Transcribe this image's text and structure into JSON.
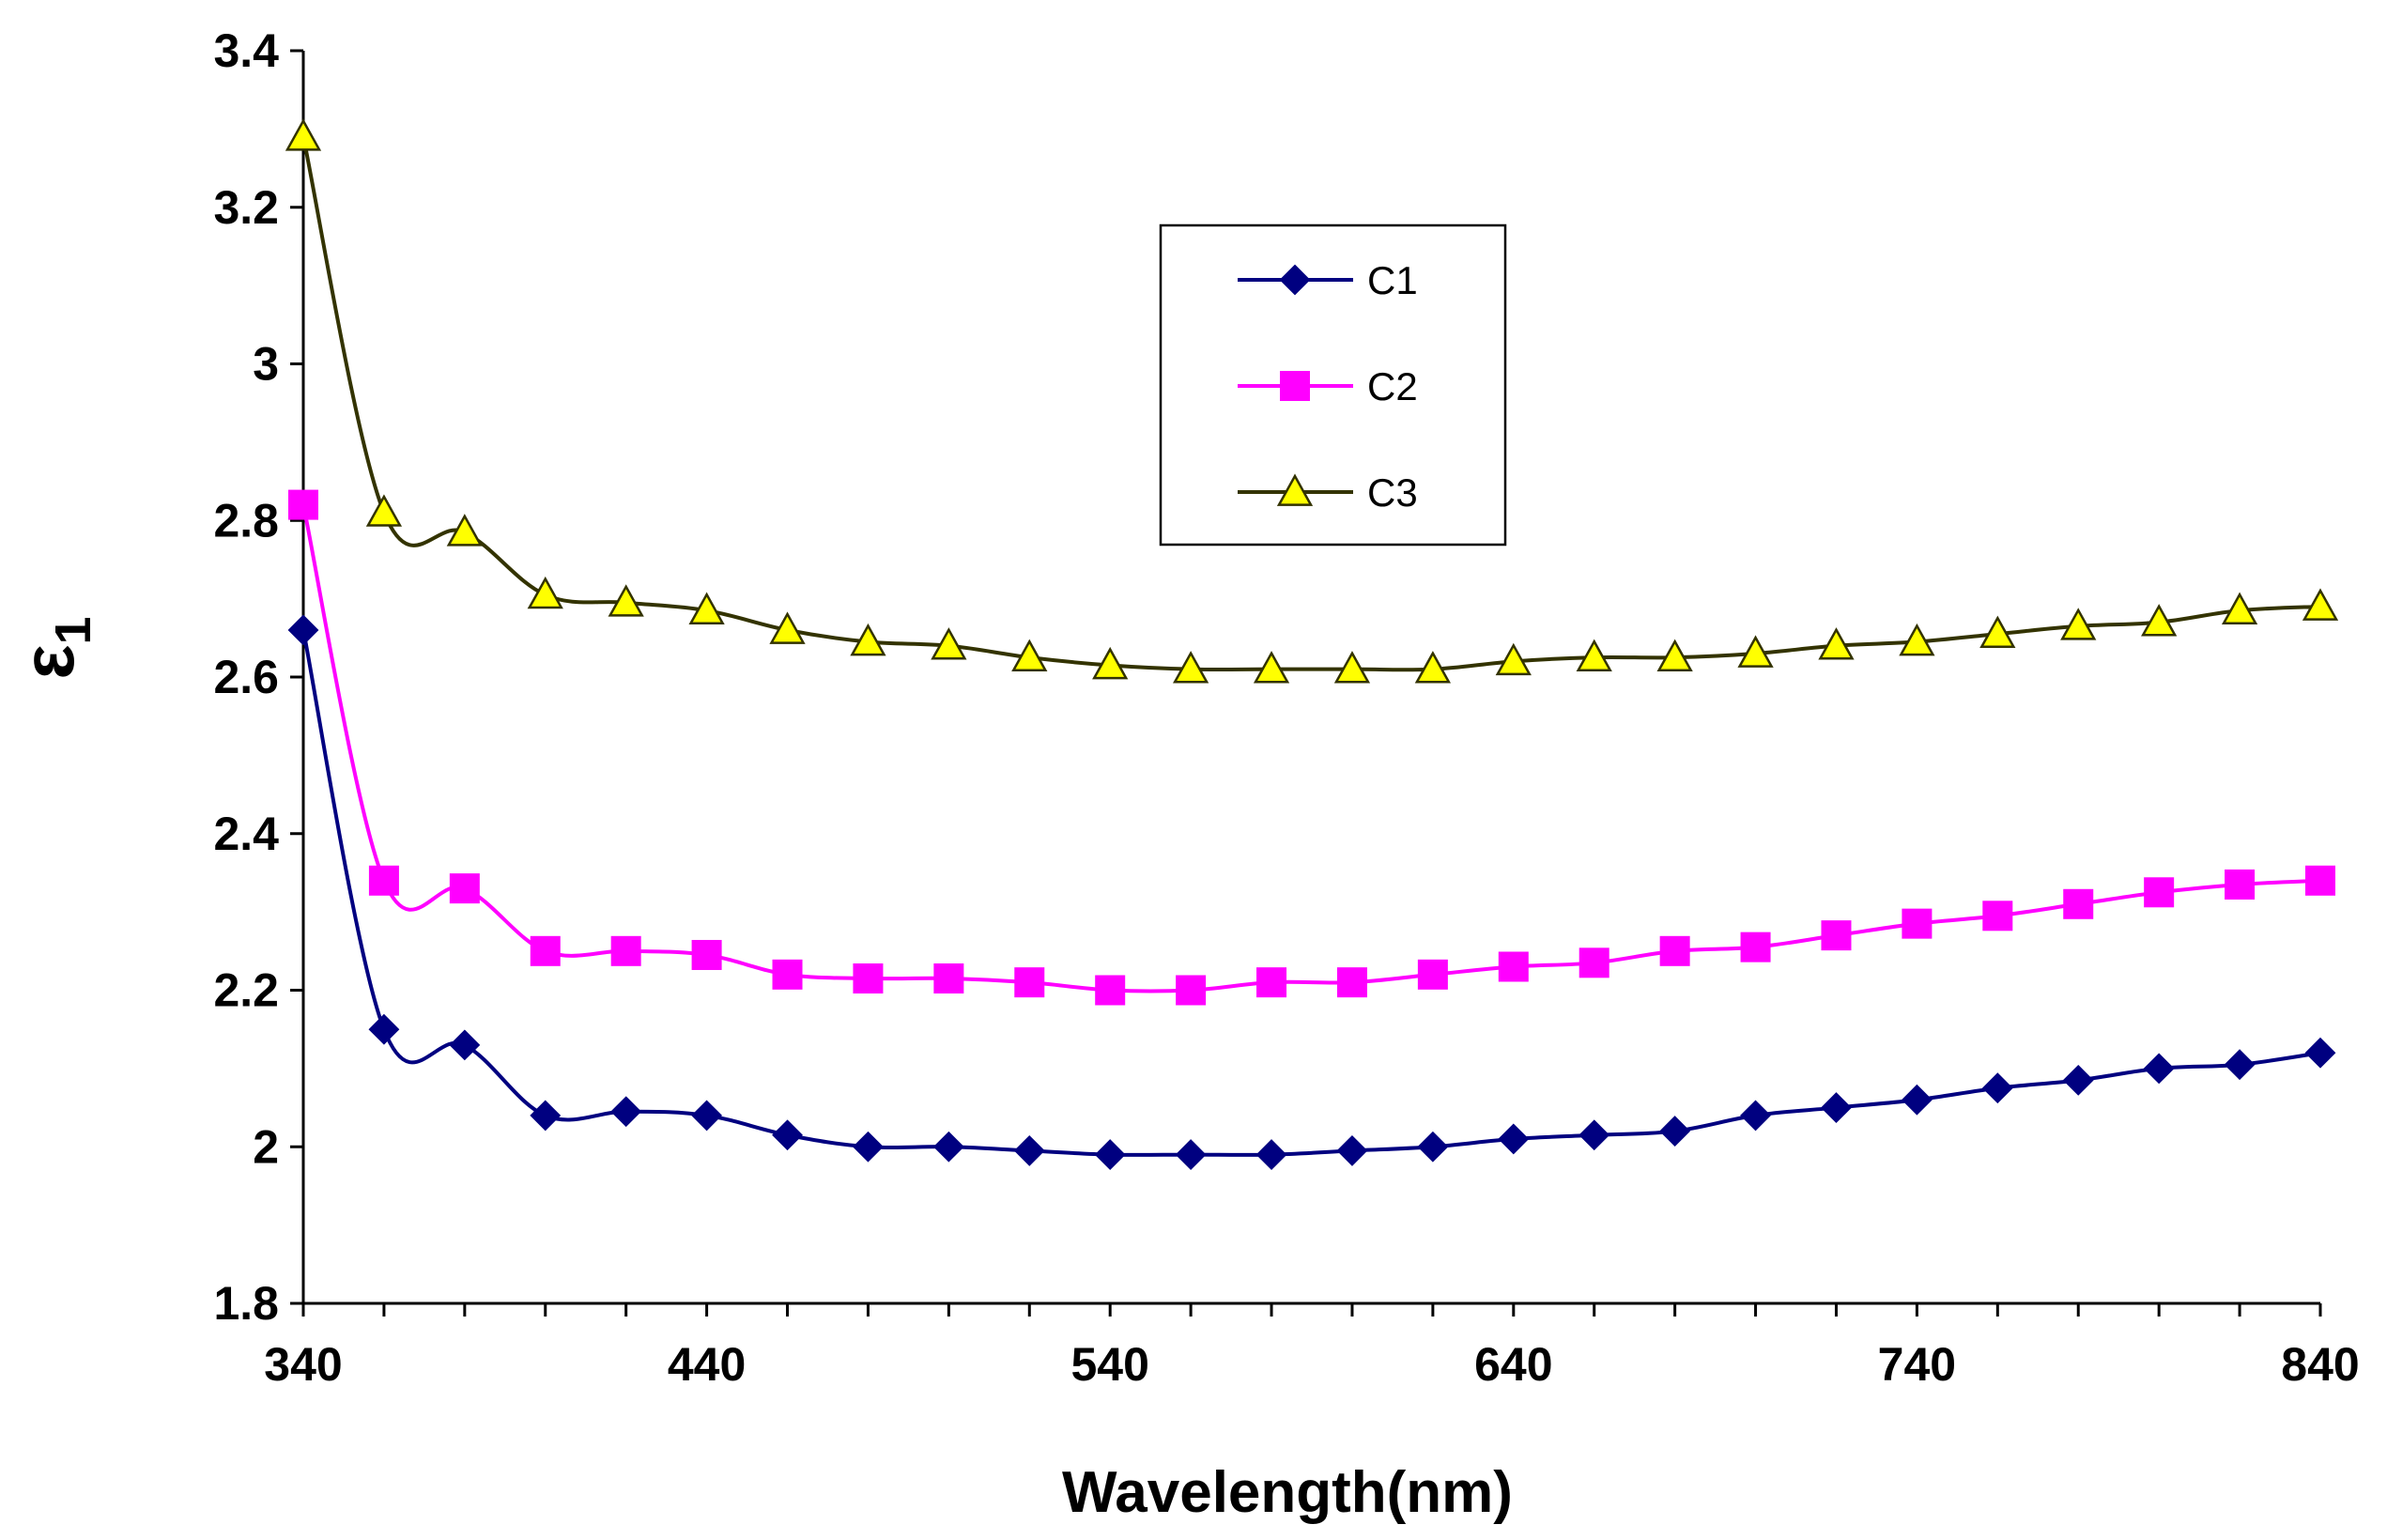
{
  "chart_data": {
    "type": "line",
    "title": "",
    "xlabel": "Wavelength(nm)",
    "ylabel": "ε",
    "ylabel_subscript": "1",
    "xlim": [
      340,
      840
    ],
    "ylim": [
      1.8,
      3.4
    ],
    "x_ticks": [
      340,
      440,
      540,
      640,
      740,
      840
    ],
    "y_ticks": [
      1.8,
      2,
      2.2,
      2.4,
      2.6,
      2.8,
      3,
      3.2,
      3.4
    ],
    "y_tick_labels": [
      "1.8",
      "2",
      "2.2",
      "2.4",
      "2.6",
      "2.8",
      "3",
      "3.2",
      "3.4"
    ],
    "grid": false,
    "legend_position": "top-center",
    "x": [
      340,
      360,
      380,
      400,
      420,
      440,
      460,
      480,
      500,
      520,
      540,
      560,
      580,
      600,
      620,
      640,
      660,
      680,
      700,
      720,
      740,
      760,
      780,
      800,
      820,
      840
    ],
    "series": [
      {
        "name": "C1",
        "marker": "diamond",
        "color": "#000080",
        "marker_fill": "#000080",
        "values": [
          2.66,
          2.15,
          2.13,
          2.04,
          2.045,
          2.04,
          2.015,
          2.0,
          2.0,
          1.995,
          1.99,
          1.99,
          1.99,
          1.995,
          2.0,
          2.01,
          2.015,
          2.02,
          2.04,
          2.05,
          2.06,
          2.075,
          2.085,
          2.1,
          2.105,
          2.12
        ]
      },
      {
        "name": "C2",
        "marker": "square",
        "color": "#FF00FF",
        "marker_fill": "#FF00FF",
        "values": [
          2.82,
          2.34,
          2.33,
          2.25,
          2.25,
          2.245,
          2.22,
          2.215,
          2.215,
          2.21,
          2.2,
          2.2,
          2.21,
          2.21,
          2.22,
          2.23,
          2.235,
          2.25,
          2.255,
          2.27,
          2.285,
          2.295,
          2.31,
          2.325,
          2.335,
          2.34
        ]
      },
      {
        "name": "C3",
        "marker": "triangle",
        "color": "#333300",
        "marker_fill": "#FFFF00",
        "values": [
          3.29,
          2.81,
          2.785,
          2.705,
          2.695,
          2.685,
          2.66,
          2.645,
          2.64,
          2.625,
          2.615,
          2.61,
          2.61,
          2.61,
          2.61,
          2.62,
          2.625,
          2.625,
          2.63,
          2.64,
          2.645,
          2.655,
          2.665,
          2.67,
          2.685,
          2.69
        ]
      }
    ]
  }
}
